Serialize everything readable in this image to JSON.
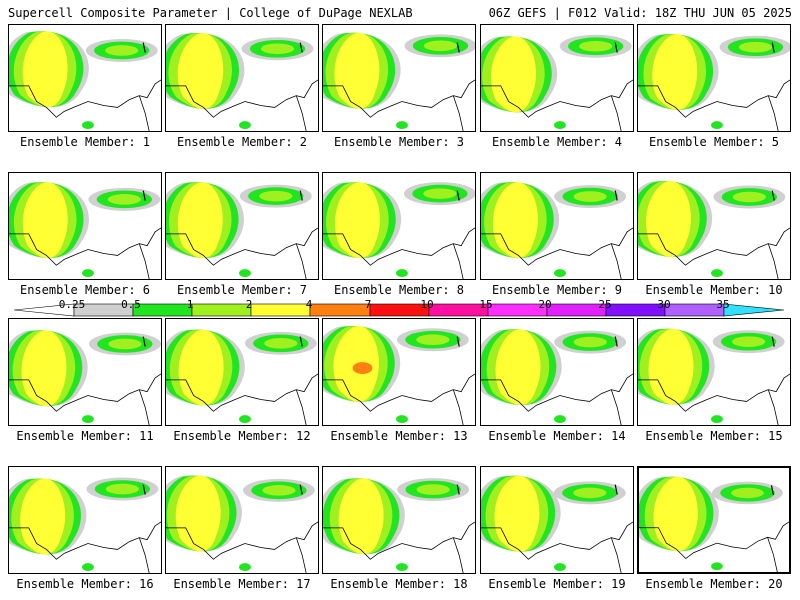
{
  "header": {
    "left": "Supercell Composite Parameter | College of DuPage NEXLAB",
    "right": "06Z GEFS | F012 Valid: 18Z THU JUN 05 2025"
  },
  "colors": {
    "c0": "#d0d0d0",
    "c1": "#22e522",
    "c2": "#a0f020",
    "c3": "#ffff33",
    "c4": "#ff8010",
    "c5": "#ff1010",
    "c6": "#ff10a0",
    "c7": "#ff30ff",
    "c8": "#e020ff",
    "c9": "#8010ff",
    "c10": "#b060ff",
    "c11": "#30e0ff"
  },
  "colorbar": {
    "labels": [
      "0.25",
      "0.5",
      "1",
      "2",
      "4",
      "7",
      "10",
      "15",
      "20",
      "25",
      "30",
      "35"
    ]
  },
  "panels": [
    {
      "label": "Ensemble Member: 1",
      "member": 1,
      "selected": false
    },
    {
      "label": "Ensemble Member: 2",
      "member": 2,
      "selected": false
    },
    {
      "label": "Ensemble Member: 3",
      "member": 3,
      "selected": false
    },
    {
      "label": "Ensemble Member: 4",
      "member": 4,
      "selected": false
    },
    {
      "label": "Ensemble Member: 5",
      "member": 5,
      "selected": false
    },
    {
      "label": "Ensemble Member: 6",
      "member": 6,
      "selected": false
    },
    {
      "label": "Ensemble Member: 7",
      "member": 7,
      "selected": false
    },
    {
      "label": "Ensemble Member: 8",
      "member": 8,
      "selected": false
    },
    {
      "label": "Ensemble Member: 9",
      "member": 9,
      "selected": false
    },
    {
      "label": "Ensemble Member: 10",
      "member": 10,
      "selected": false
    },
    {
      "label": "Ensemble Member: 11",
      "member": 11,
      "selected": false
    },
    {
      "label": "Ensemble Member: 12",
      "member": 12,
      "selected": false
    },
    {
      "label": "Ensemble Member: 13",
      "member": 13,
      "selected": false
    },
    {
      "label": "Ensemble Member: 14",
      "member": 14,
      "selected": false
    },
    {
      "label": "Ensemble Member: 15",
      "member": 15,
      "selected": false
    },
    {
      "label": "Ensemble Member: 16",
      "member": 16,
      "selected": false
    },
    {
      "label": "Ensemble Member: 17",
      "member": 17,
      "selected": false
    },
    {
      "label": "Ensemble Member: 18",
      "member": 18,
      "selected": false
    },
    {
      "label": "Ensemble Member: 19",
      "member": 19,
      "selected": false
    },
    {
      "label": "Ensemble Member: 20",
      "member": 20,
      "selected": true
    }
  ]
}
